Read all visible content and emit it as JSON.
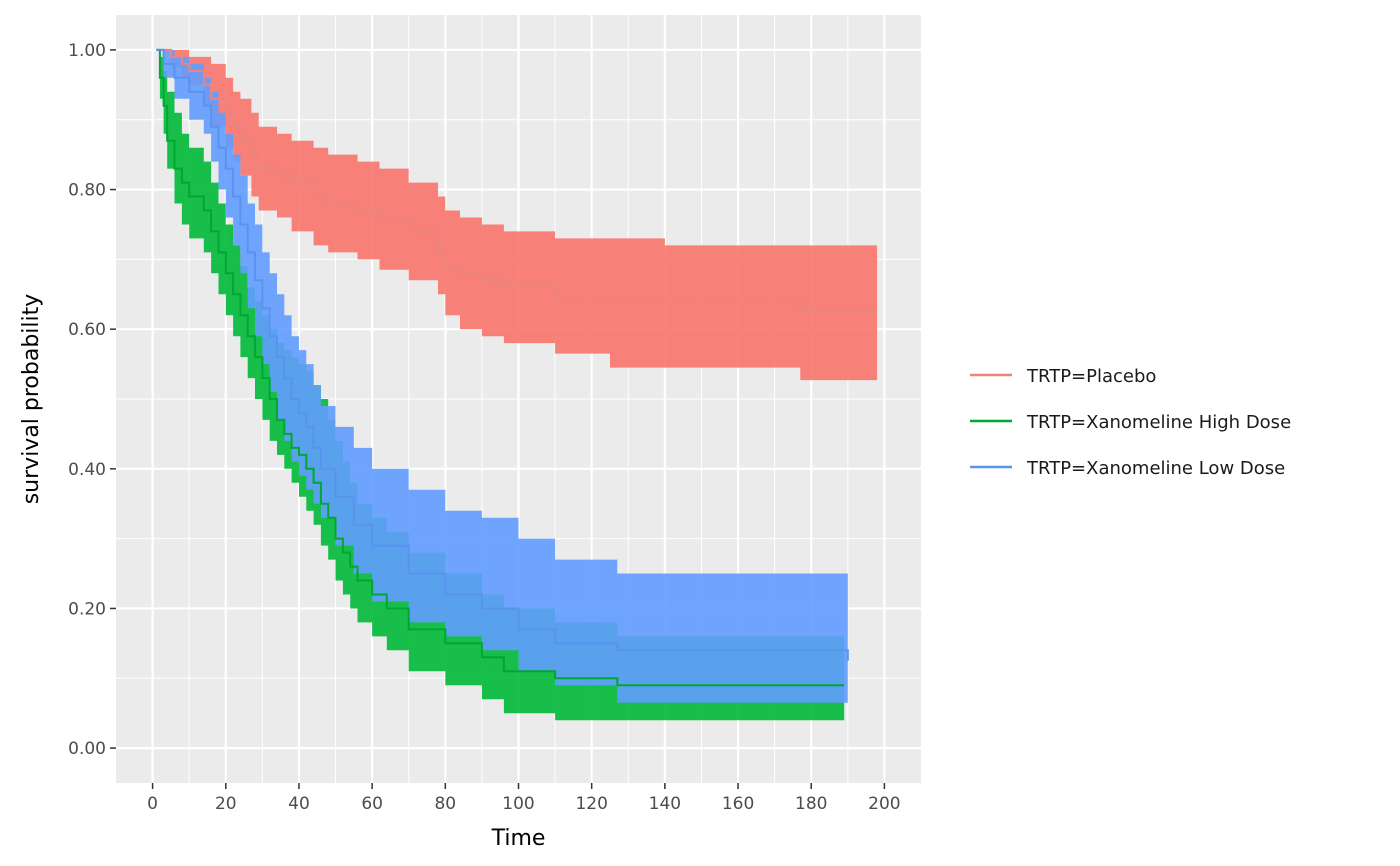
{
  "chart_data": {
    "type": "line",
    "subtype": "kaplan-meier step curves with shaded confidence bands",
    "xlabel": "Time",
    "ylabel": "survival probability",
    "xlim": [
      -10,
      210
    ],
    "ylim": [
      -0.05,
      1.05
    ],
    "x_ticks": [
      0,
      20,
      40,
      60,
      80,
      100,
      120,
      140,
      160,
      180,
      200
    ],
    "x_tick_labels": [
      "0",
      "20",
      "40",
      "60",
      "80",
      "100",
      "120",
      "140",
      "160",
      "180",
      "200"
    ],
    "y_ticks": [
      0,
      0.2,
      0.4,
      0.6,
      0.8,
      1.0
    ],
    "y_tick_labels": [
      "0.00",
      "0.20",
      "0.40",
      "0.60",
      "0.80",
      "1.00"
    ],
    "grid": true,
    "panel_background": "#ebebeb",
    "legend_position": "right",
    "series": [
      {
        "name": "TRTP=Placebo",
        "color": "#F8766D",
        "line_color": "#E8857E",
        "time": [
          1,
          5,
          8,
          10,
          14,
          16,
          20,
          22,
          24,
          27,
          29,
          34,
          38,
          44,
          48,
          56,
          62,
          70,
          78,
          80,
          84,
          90,
          96,
          110,
          125,
          140,
          177,
          198
        ],
        "surv": [
          1.0,
          0.99,
          0.98,
          0.97,
          0.95,
          0.93,
          0.91,
          0.89,
          0.87,
          0.85,
          0.83,
          0.82,
          0.81,
          0.79,
          0.78,
          0.77,
          0.76,
          0.74,
          0.71,
          0.69,
          0.68,
          0.67,
          0.66,
          0.645,
          0.645,
          0.645,
          0.627,
          0.627
        ],
        "lower": [
          1.0,
          0.975,
          0.96,
          0.95,
          0.92,
          0.89,
          0.86,
          0.84,
          0.82,
          0.79,
          0.77,
          0.76,
          0.74,
          0.72,
          0.71,
          0.7,
          0.685,
          0.67,
          0.65,
          0.62,
          0.6,
          0.59,
          0.58,
          0.565,
          0.545,
          0.545,
          0.527,
          0.527
        ],
        "upper": [
          1.0,
          1.0,
          1.0,
          0.99,
          0.99,
          0.98,
          0.96,
          0.94,
          0.93,
          0.91,
          0.89,
          0.88,
          0.87,
          0.86,
          0.85,
          0.84,
          0.83,
          0.81,
          0.79,
          0.77,
          0.76,
          0.75,
          0.74,
          0.73,
          0.73,
          0.72,
          0.72,
          0.72
        ]
      },
      {
        "name": "TRTP=Xanomeline High Dose",
        "color": "#00BA38",
        "line_color": "#00A832",
        "time": [
          1,
          2,
          3,
          4,
          6,
          8,
          10,
          14,
          16,
          18,
          20,
          22,
          24,
          26,
          28,
          30,
          32,
          34,
          36,
          38,
          40,
          42,
          44,
          46,
          48,
          50,
          52,
          54,
          56,
          60,
          64,
          70,
          80,
          90,
          96,
          110,
          127,
          140,
          160,
          189
        ],
        "surv": [
          1.0,
          0.96,
          0.92,
          0.87,
          0.83,
          0.81,
          0.79,
          0.77,
          0.74,
          0.71,
          0.68,
          0.65,
          0.62,
          0.59,
          0.56,
          0.53,
          0.5,
          0.47,
          0.45,
          0.43,
          0.42,
          0.4,
          0.38,
          0.35,
          0.33,
          0.3,
          0.28,
          0.26,
          0.24,
          0.22,
          0.2,
          0.17,
          0.15,
          0.13,
          0.11,
          0.1,
          0.09,
          0.09,
          0.09,
          0.09
        ],
        "lower": [
          1.0,
          0.93,
          0.88,
          0.83,
          0.78,
          0.75,
          0.73,
          0.71,
          0.68,
          0.65,
          0.62,
          0.59,
          0.56,
          0.53,
          0.5,
          0.47,
          0.44,
          0.42,
          0.4,
          0.38,
          0.36,
          0.34,
          0.32,
          0.29,
          0.27,
          0.24,
          0.22,
          0.2,
          0.18,
          0.16,
          0.14,
          0.11,
          0.09,
          0.07,
          0.05,
          0.04,
          0.04,
          0.04,
          0.04,
          0.04
        ],
        "upper": [
          1.0,
          0.99,
          0.97,
          0.94,
          0.91,
          0.88,
          0.86,
          0.84,
          0.81,
          0.78,
          0.75,
          0.72,
          0.69,
          0.66,
          0.64,
          0.62,
          0.6,
          0.58,
          0.57,
          0.56,
          0.55,
          0.54,
          0.52,
          0.5,
          0.47,
          0.44,
          0.41,
          0.38,
          0.35,
          0.33,
          0.31,
          0.28,
          0.25,
          0.22,
          0.2,
          0.18,
          0.16,
          0.16,
          0.16,
          0.16
        ]
      },
      {
        "name": "TRTP=Xanomeline Low Dose",
        "color": "#619CFF",
        "line_color": "#5A93EE",
        "time": [
          1,
          3,
          6,
          10,
          14,
          16,
          18,
          20,
          22,
          24,
          26,
          28,
          30,
          32,
          34,
          36,
          38,
          40,
          42,
          44,
          46,
          50,
          55,
          60,
          70,
          80,
          90,
          100,
          110,
          127,
          140,
          160,
          190
        ],
        "surv": [
          1.0,
          0.98,
          0.96,
          0.94,
          0.92,
          0.89,
          0.86,
          0.83,
          0.79,
          0.75,
          0.71,
          0.67,
          0.63,
          0.59,
          0.56,
          0.53,
          0.5,
          0.48,
          0.46,
          0.43,
          0.4,
          0.36,
          0.32,
          0.29,
          0.25,
          0.22,
          0.2,
          0.17,
          0.15,
          0.14,
          0.14,
          0.14,
          0.125
        ],
        "lower": [
          1.0,
          0.96,
          0.93,
          0.9,
          0.88,
          0.84,
          0.8,
          0.76,
          0.72,
          0.68,
          0.63,
          0.59,
          0.55,
          0.51,
          0.47,
          0.44,
          0.41,
          0.39,
          0.37,
          0.35,
          0.33,
          0.29,
          0.25,
          0.21,
          0.18,
          0.16,
          0.14,
          0.11,
          0.09,
          0.065,
          0.065,
          0.065,
          0.065
        ],
        "upper": [
          1.0,
          1.0,
          0.99,
          0.98,
          0.96,
          0.94,
          0.91,
          0.88,
          0.85,
          0.82,
          0.78,
          0.75,
          0.71,
          0.68,
          0.65,
          0.62,
          0.59,
          0.57,
          0.55,
          0.52,
          0.49,
          0.46,
          0.43,
          0.4,
          0.37,
          0.34,
          0.33,
          0.3,
          0.27,
          0.25,
          0.25,
          0.25,
          0.25
        ]
      }
    ]
  }
}
